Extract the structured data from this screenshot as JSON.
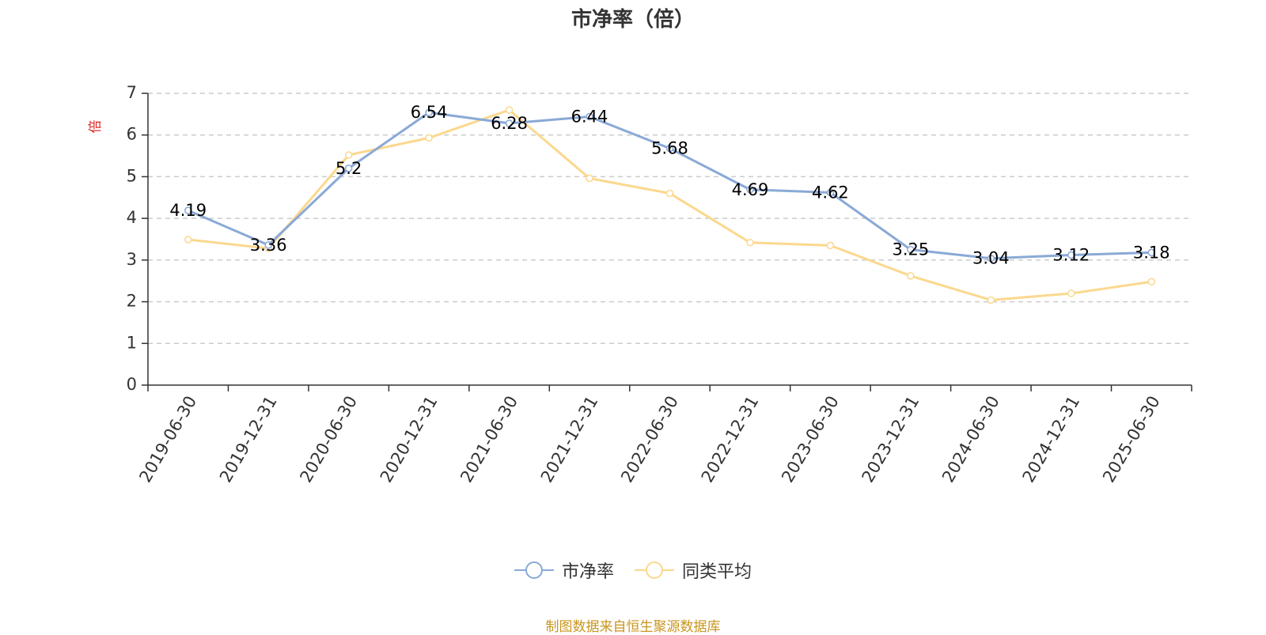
{
  "chart_data": {
    "type": "line",
    "title": "市净率（倍）",
    "ylabel": "倍",
    "ylim": [
      0,
      7
    ],
    "yticks": [
      0,
      1,
      2,
      3,
      4,
      5,
      6,
      7
    ],
    "grid": true,
    "legend_position": "bottom",
    "categories": [
      "2019-06-30",
      "2019-12-31",
      "2020-06-30",
      "2020-12-31",
      "2021-06-30",
      "2021-12-31",
      "2022-06-30",
      "2022-12-31",
      "2023-06-30",
      "2023-12-31",
      "2024-06-30",
      "2024-12-31",
      "2025-06-30"
    ],
    "series": [
      {
        "name": "市净率",
        "color": "#8aa9d6",
        "values": [
          4.19,
          3.36,
          5.2,
          6.54,
          6.28,
          6.44,
          5.68,
          4.69,
          4.62,
          3.25,
          3.04,
          3.12,
          3.18
        ],
        "data_labels": [
          "4.19",
          "3.36",
          "5.2",
          "6.54",
          "6.28",
          "6.44",
          "5.68",
          "4.69",
          "4.62",
          "3.25",
          "3.04",
          "3.12",
          "3.18"
        ]
      },
      {
        "name": "同类平均",
        "color": "#fbd88e",
        "values": [
          3.49,
          3.28,
          5.52,
          5.93,
          6.6,
          4.96,
          4.6,
          3.42,
          3.35,
          2.62,
          2.04,
          2.2,
          2.48
        ]
      }
    ]
  },
  "source_note": "制图数据来自恒生聚源数据库"
}
